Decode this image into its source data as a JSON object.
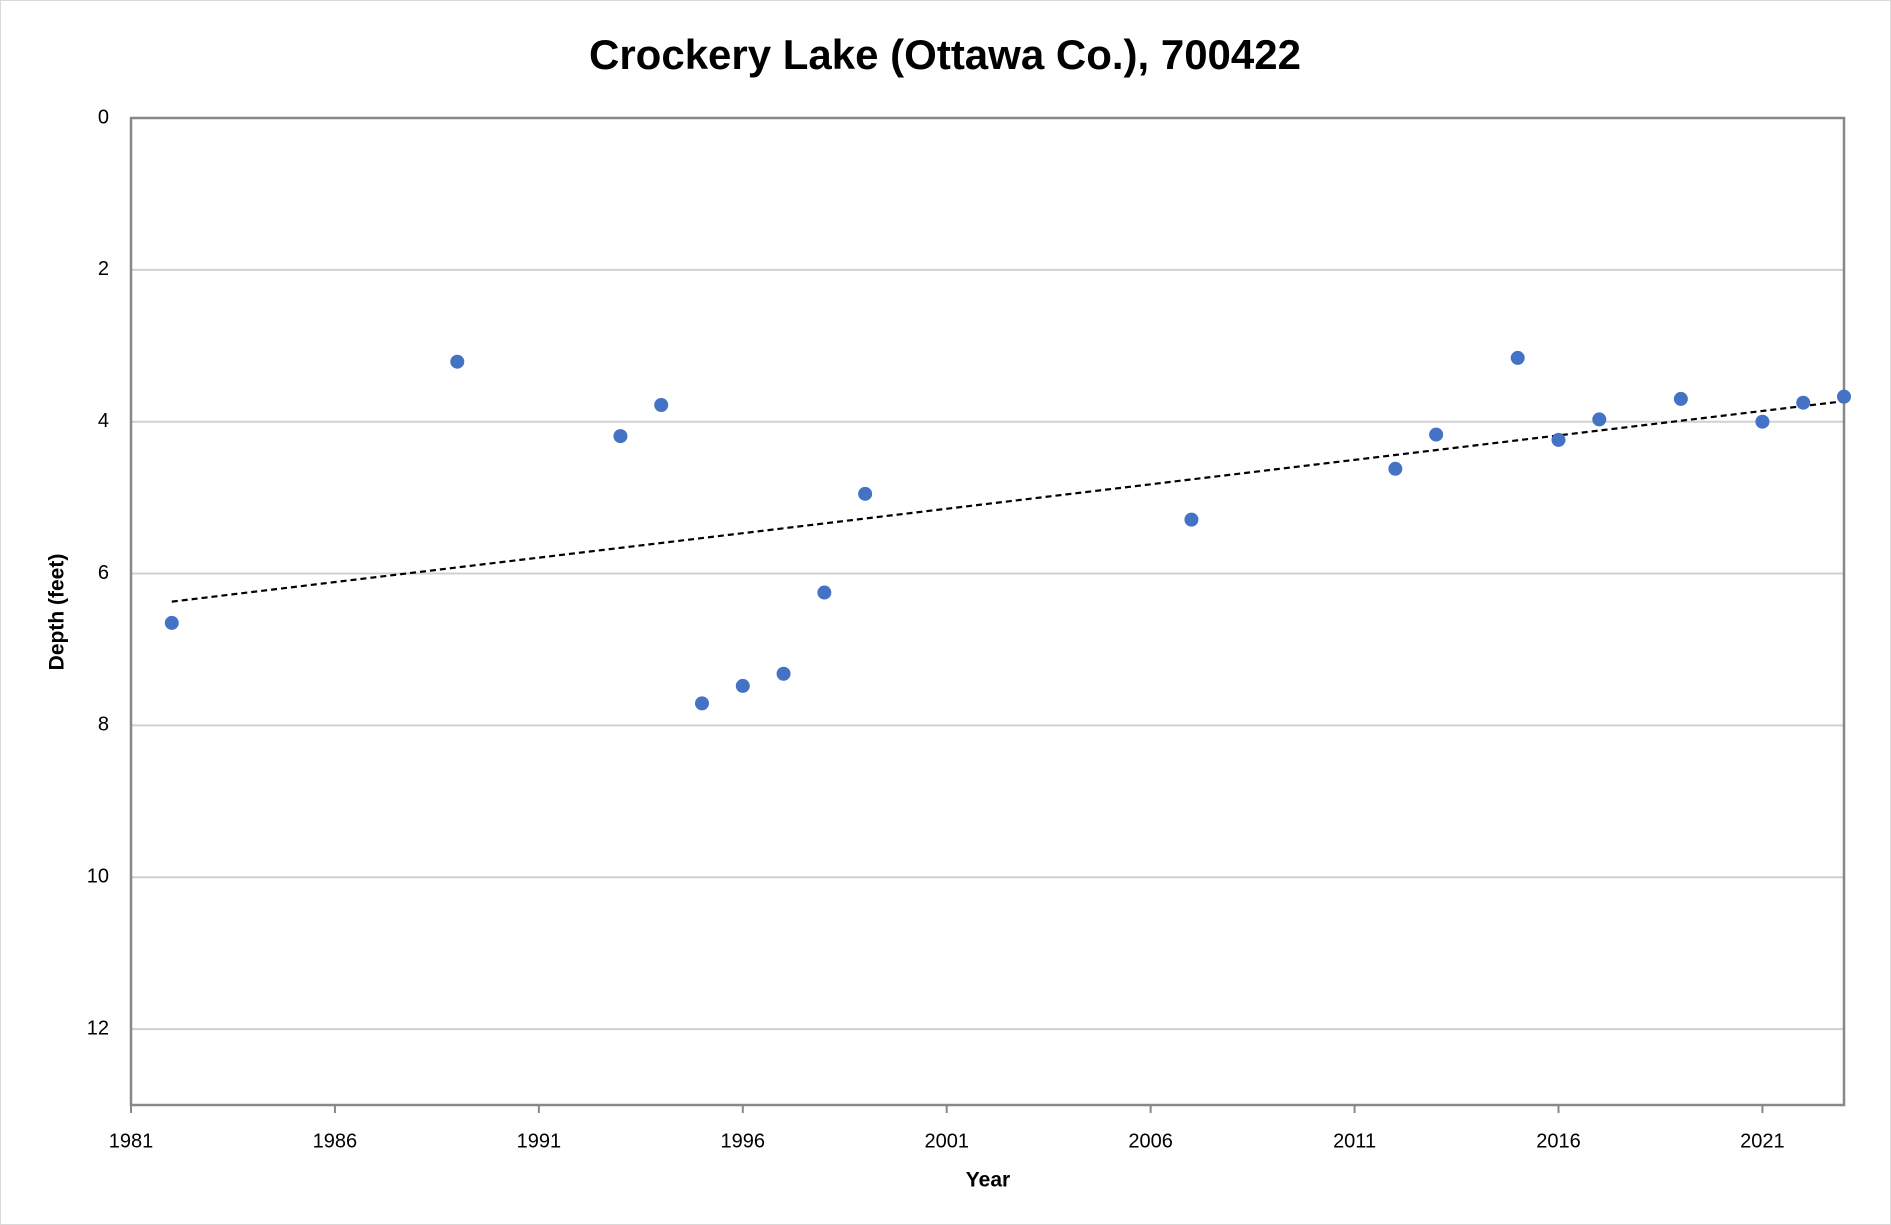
{
  "chart_data": {
    "type": "scatter",
    "title": "Crockery Lake (Ottawa Co.), 700422",
    "xlabel": "Year",
    "ylabel": "Depth (feet)",
    "x": [
      1982,
      1989,
      1993,
      1994,
      1995,
      1996,
      1997,
      1998,
      1999,
      2007,
      2012,
      2013,
      2015,
      2016,
      2017,
      2019,
      2021,
      2022,
      2023
    ],
    "values": [
      6.65,
      3.21,
      4.19,
      3.78,
      7.71,
      7.48,
      7.32,
      6.25,
      4.95,
      5.29,
      4.62,
      4.17,
      3.16,
      4.24,
      3.97,
      3.7,
      4.0,
      3.75,
      3.67
    ],
    "color": "#4472c4",
    "trendline": {
      "x": [
        1982,
        2023
      ],
      "values": [
        6.37,
        3.73
      ],
      "color": "#000000"
    },
    "xlim": [
      1981,
      2023
    ],
    "xticks": [
      1981,
      1986,
      1991,
      1996,
      2001,
      2006,
      2011,
      2016,
      2021
    ],
    "ylim": [
      0,
      13
    ],
    "yticks": [
      0,
      2,
      4,
      6,
      8,
      10,
      12
    ],
    "y_inverted": true,
    "grid": true
  }
}
